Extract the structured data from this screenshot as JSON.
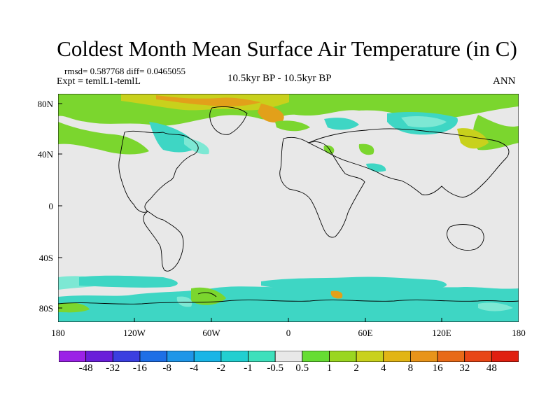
{
  "title": "Coldest Month Mean Surface Air Temperature (in C)",
  "stats": "rmsd= 0.587768 diff= 0.0465055",
  "expt": "Expt = temlL1-temlL",
  "center_label": "10.5kyr BP - 10.5kyr BP",
  "season": "ANN",
  "lat_ticks": [
    "80N",
    "40N",
    "0",
    "40S",
    "80S"
  ],
  "lon_ticks": [
    "180",
    "120W",
    "60W",
    "0",
    "60E",
    "120E",
    "180"
  ],
  "colorbar": {
    "labels": [
      "-48",
      "-32",
      "-16",
      "-8",
      "-4",
      "-2",
      "-1",
      "-0.5",
      "0.5",
      "1",
      "2",
      "4",
      "8",
      "16",
      "32",
      "48"
    ],
    "colors": [
      "#9b22e6",
      "#6a1fd9",
      "#3b3fe0",
      "#1e6fe6",
      "#1f96e8",
      "#19b5e6",
      "#22cfd0",
      "#3ee0bc",
      "#e8e8e8",
      "#66dd33",
      "#9ad620",
      "#c9d11c",
      "#e2b515",
      "#e8941a",
      "#e86a18",
      "#e84616",
      "#e02010"
    ]
  },
  "colors": {
    "neutral": "#e8e8e8",
    "cyan": "#3ed6c4",
    "lightcyan": "#7de8d4",
    "green": "#7bd62e",
    "yellow": "#c8d11c",
    "orange": "#e2a01a"
  }
}
